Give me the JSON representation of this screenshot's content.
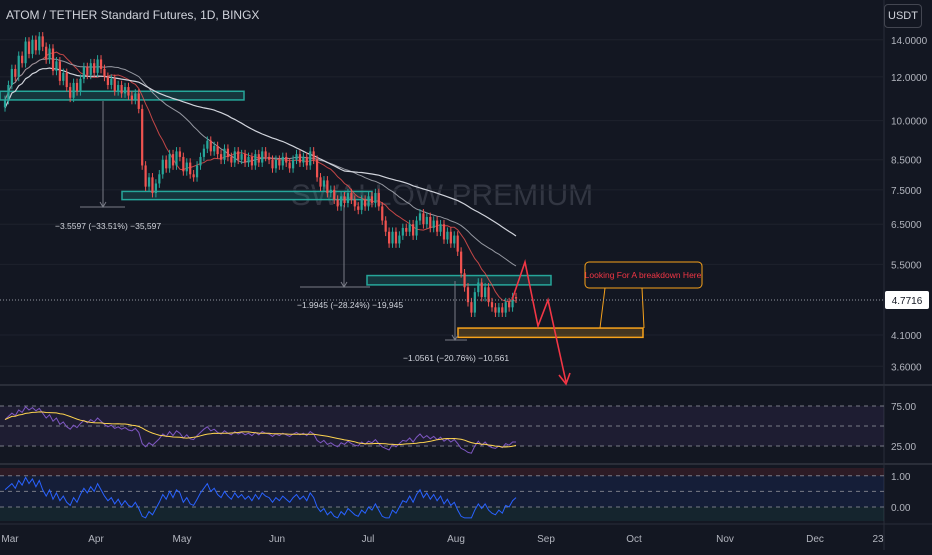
{
  "header": {
    "title": "ATOM / TETHER Standard Futures, 1D, BINGX",
    "currency": "USDT"
  },
  "watermark": "SWALLOW PREMIUM",
  "colors": {
    "background": "#131722",
    "up": "#26a69a",
    "down": "#ef5350",
    "box_green": "#26a69a",
    "box_orange": "#f7a21b",
    "rsi": "#7e57c2",
    "rsi_ma": "#ffd54f",
    "osc": "#2962ff",
    "arrow": "#f23645",
    "ema200": "#d1d4dc"
  },
  "annotations": {
    "measure_1": "−3.5597 (−33.51%) −35,597",
    "measure_2": "−1.9945 (−28.24%) −19,945",
    "measure_3": "−1.0561 (−20.76%) −10,561",
    "callout": "Looking For A breakdown Here"
  },
  "chart_data": [
    {
      "type": "candlestick",
      "title": "ATOM / TETHER Standard Futures, 1D, BINGX",
      "yscale": "log",
      "ylim": [
        3.4,
        15.2
      ],
      "price_ticks": [
        "14.0000",
        "12.0000",
        "10.0000",
        "8.5000",
        "7.5000",
        "6.5000",
        "5.5000",
        "4.1000",
        "3.6000"
      ],
      "current_price": "4.7716",
      "x_ticks": [
        "Mar",
        "Apr",
        "May",
        "Jun",
        "Jul",
        "Aug",
        "Sep",
        "Oct",
        "Nov",
        "Dec",
        "23"
      ],
      "close": [
        10.9,
        11.6,
        12.4,
        12.0,
        13.1,
        12.7,
        13.9,
        13.2,
        14.0,
        13.4,
        14.2,
        13.6,
        12.9,
        13.5,
        12.3,
        12.8,
        11.8,
        12.2,
        11.5,
        11.0,
        11.7,
        11.3,
        11.9,
        12.5,
        12.1,
        12.7,
        12.2,
        12.9,
        12.4,
        12.0,
        11.6,
        11.9,
        11.3,
        11.6,
        11.2,
        11.5,
        11.1,
        10.9,
        11.2,
        10.5,
        8.3,
        7.6,
        7.9,
        7.4,
        7.7,
        8.0,
        8.5,
        8.2,
        8.7,
        8.3,
        8.8,
        8.6,
        8.1,
        8.4,
        8.0,
        7.9,
        8.3,
        8.6,
        8.9,
        9.2,
        8.8,
        9.0,
        8.7,
        8.5,
        8.9,
        8.6,
        8.4,
        8.8,
        8.5,
        8.7,
        8.4,
        8.6,
        8.3,
        8.7,
        8.4,
        8.8,
        8.6,
        8.5,
        8.2,
        8.5,
        8.3,
        8.6,
        8.4,
        8.2,
        8.5,
        8.7,
        8.4,
        8.6,
        8.3,
        8.8,
        8.5,
        7.9,
        7.6,
        7.8,
        7.4,
        7.5,
        7.2,
        7.0,
        7.3,
        7.1,
        7.4,
        7.2,
        7.0,
        6.9,
        7.2,
        7.0,
        7.3,
        7.1,
        7.4,
        7.0,
        6.6,
        6.3,
        6.0,
        6.3,
        6.0,
        6.2,
        6.4,
        6.3,
        6.5,
        6.2,
        6.6,
        6.8,
        6.5,
        6.7,
        6.4,
        6.6,
        6.3,
        6.5,
        6.1,
        6.3,
        6.0,
        6.2,
        5.8,
        5.3,
        5.0,
        4.7,
        4.5,
        4.9,
        5.1,
        4.8,
        5.0,
        4.7,
        4.6,
        4.5,
        4.6,
        4.5,
        4.7,
        4.6,
        4.8,
        4.77
      ],
      "box_zones": [
        {
          "kind": "green",
          "from": 11.3,
          "to": 10.9
        },
        {
          "kind": "green",
          "from": 7.45,
          "to": 7.2
        },
        {
          "kind": "green",
          "from": 5.25,
          "to": 5.05
        },
        {
          "kind": "orange",
          "from": 4.22,
          "to": 4.06
        }
      ],
      "rsi_ticks": [
        "75.00",
        "25.00"
      ],
      "osc_ticks": [
        "1.00",
        "0.00"
      ],
      "rsi": [
        58,
        62,
        66,
        63,
        70,
        67,
        74,
        70,
        73,
        69,
        72,
        66,
        60,
        64,
        56,
        60,
        52,
        55,
        49,
        46,
        51,
        48,
        53,
        57,
        54,
        58,
        55,
        60,
        56,
        52,
        49,
        51,
        47,
        49,
        46,
        48,
        45,
        44,
        47,
        42,
        28,
        24,
        29,
        26,
        30,
        34,
        40,
        37,
        43,
        38,
        44,
        41,
        35,
        39,
        34,
        33,
        38,
        42,
        46,
        49,
        44,
        46,
        42,
        40,
        44,
        41,
        39,
        43,
        40,
        42,
        39,
        41,
        38,
        42,
        39,
        43,
        41,
        40,
        37,
        40,
        38,
        41,
        39,
        37,
        40,
        42,
        39,
        41,
        38,
        43,
        40,
        32,
        29,
        32,
        27,
        29,
        26,
        24,
        29,
        27,
        31,
        28,
        26,
        25,
        30,
        27,
        31,
        29,
        33,
        28,
        24,
        22,
        20,
        27,
        24,
        28,
        32,
        31,
        35,
        30,
        36,
        40,
        35,
        38,
        34,
        37,
        33,
        36,
        31,
        34,
        30,
        33,
        28,
        22,
        20,
        17,
        16,
        25,
        31,
        26,
        30,
        25,
        23,
        22,
        25,
        23,
        28,
        26,
        30,
        30
      ],
      "osc": [
        0.55,
        0.65,
        0.75,
        0.6,
        0.85,
        0.7,
        0.95,
        0.75,
        0.9,
        0.65,
        0.85,
        0.55,
        0.35,
        0.55,
        0.25,
        0.45,
        0.2,
        0.35,
        0.15,
        0.05,
        0.3,
        0.15,
        0.4,
        0.6,
        0.45,
        0.65,
        0.5,
        0.75,
        0.55,
        0.35,
        0.2,
        0.3,
        0.1,
        0.25,
        0.05,
        0.2,
        0.05,
        0.0,
        0.15,
        -0.05,
        -0.3,
        -0.35,
        -0.15,
        -0.25,
        -0.05,
        0.15,
        0.4,
        0.25,
        0.5,
        0.3,
        0.55,
        0.45,
        0.15,
        0.3,
        0.1,
        0.05,
        0.25,
        0.45,
        0.6,
        0.75,
        0.5,
        0.6,
        0.4,
        0.3,
        0.5,
        0.35,
        0.25,
        0.45,
        0.3,
        0.4,
        0.25,
        0.35,
        0.2,
        0.4,
        0.25,
        0.45,
        0.35,
        0.3,
        0.15,
        0.3,
        0.2,
        0.35,
        0.25,
        0.15,
        0.3,
        0.4,
        0.25,
        0.35,
        0.2,
        0.45,
        0.3,
        0.0,
        -0.15,
        -0.05,
        -0.25,
        -0.15,
        -0.3,
        -0.35,
        -0.15,
        -0.25,
        -0.05,
        -0.15,
        -0.25,
        -0.3,
        -0.1,
        -0.2,
        0.0,
        -0.1,
        0.1,
        -0.1,
        -0.3,
        -0.35,
        -0.35,
        -0.1,
        -0.2,
        0.0,
        0.2,
        0.15,
        0.35,
        0.15,
        0.4,
        0.55,
        0.3,
        0.45,
        0.25,
        0.4,
        0.2,
        0.35,
        0.1,
        0.25,
        0.05,
        0.15,
        -0.1,
        -0.3,
        -0.35,
        -0.35,
        -0.35,
        -0.1,
        0.1,
        -0.05,
        0.1,
        -0.1,
        -0.2,
        -0.25,
        -0.1,
        -0.2,
        0.05,
        0.0,
        0.2,
        0.3
      ]
    }
  ]
}
